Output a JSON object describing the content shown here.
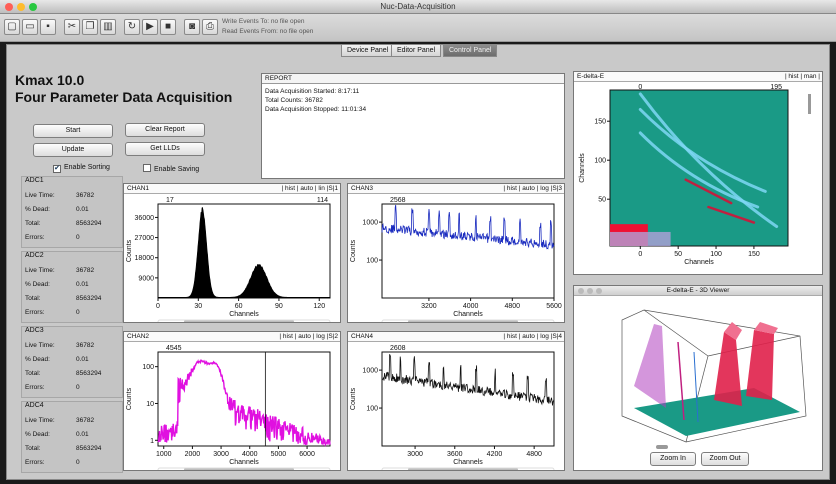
{
  "window": {
    "title": "Nuc-Data-Acquisition",
    "toolbar_info": [
      "Write Events To: no file open",
      "Read Events From: no file open"
    ]
  },
  "tabs": [
    {
      "label": "Device Panel"
    },
    {
      "label": "Editor Panel"
    },
    {
      "label": "Control Panel"
    }
  ],
  "app": {
    "title_line1": "Kmax 10.0",
    "title_line2": "Four Parameter Data Acquisition"
  },
  "buttons": {
    "start": "Start",
    "update": "Update",
    "clear_report": "Clear Report",
    "get_llds": "Get LLDs"
  },
  "checkboxes": {
    "enable_sorting": {
      "label": "Enable Sorting",
      "checked": true
    },
    "enable_saving": {
      "label": "Enable Saving",
      "checked": false
    }
  },
  "adc": [
    {
      "title": "ADC1",
      "live_time_label": "Live Time:",
      "live_time": "36782",
      "dead_label": "% Dead:",
      "dead": "0.01",
      "total_label": "Total:",
      "total": "8563294",
      "errors_label": "Errors:",
      "errors": "0"
    },
    {
      "title": "ADC2",
      "live_time_label": "Live Time:",
      "live_time": "36782",
      "dead_label": "% Dead:",
      "dead": "0.01",
      "total_label": "Total:",
      "total": "8563294",
      "errors_label": "Errors:",
      "errors": "0"
    },
    {
      "title": "ADC3",
      "live_time_label": "Live Time:",
      "live_time": "36782",
      "dead_label": "% Dead:",
      "dead": "0.01",
      "total_label": "Total:",
      "total": "8563294",
      "errors_label": "Errors:",
      "errors": "0"
    },
    {
      "title": "ADC4",
      "live_time_label": "Live Time:",
      "live_time": "36782",
      "dead_label": "% Dead:",
      "dead": "0.01",
      "total_label": "Total:",
      "total": "8563294",
      "errors_label": "Errors:",
      "errors": "0"
    }
  ],
  "report": {
    "header": "REPORT",
    "lines": [
      "Data Acquisition Started:  8:17:11",
      "Total Counts: 36782",
      "Data Acquisition Stopped: 11:01:34"
    ]
  },
  "chart_data": [
    {
      "name": "CHAN1",
      "type": "area",
      "controls": "| hist | auto | lin |S|1",
      "marker_labels": [
        "17",
        "114"
      ],
      "xlabel": "Channels",
      "ylabel": "Counts",
      "xlim": [
        0,
        128
      ],
      "ylim": [
        0,
        42000
      ],
      "yscale": "linear",
      "xticks": [
        0,
        30,
        60,
        90,
        120
      ],
      "yticks": [
        9000,
        18000,
        27000,
        36000
      ],
      "ytick_labels": [
        "9000",
        "18000",
        "27000",
        "36000"
      ],
      "color": "#000000",
      "peaks": [
        {
          "center": 33,
          "height": 39000,
          "width": 3.2
        },
        {
          "center": 75,
          "height": 14500,
          "width": 6
        }
      ],
      "baseline": 300
    },
    {
      "name": "CHAN3",
      "type": "line",
      "controls": "| hist | auto | log |S|3",
      "marker_labels": [
        "2568",
        ""
      ],
      "xlabel": "Channels",
      "ylabel": "Counts",
      "xlim": [
        2300,
        5600
      ],
      "ylim": [
        10,
        3000
      ],
      "yscale": "log",
      "xticks": [
        3200,
        4000,
        4800,
        5600
      ],
      "yticks": [
        100,
        1000
      ],
      "ytick_labels": [
        "100",
        "1000"
      ],
      "color": "#1a2bbf",
      "base": {
        "start": 700,
        "end": 250
      },
      "spikes": [
        2560,
        2880,
        3200,
        3400,
        3590,
        3780,
        4100,
        4380,
        4650,
        4950,
        5340,
        5540
      ]
    },
    {
      "name": "CHAN2",
      "type": "line",
      "controls": "| hist | auto | log |S|2",
      "marker_labels": [
        "4545"
      ],
      "xlabel": "Channels",
      "ylabel": "Counts",
      "xlim": [
        800,
        6800
      ],
      "ylim": [
        0.7,
        250
      ],
      "yscale": "log",
      "xticks": [
        1000,
        2000,
        3000,
        4000,
        5000,
        6000
      ],
      "yticks": [
        1,
        10,
        100
      ],
      "ytick_labels": [
        "1",
        "10",
        "100"
      ],
      "color": "#e010e0",
      "peaks": [
        {
          "center": 2300,
          "height": 120,
          "width": 260
        },
        {
          "center": 2800,
          "height": 90,
          "width": 180
        }
      ],
      "cursor": 4545
    },
    {
      "name": "CHAN4",
      "type": "line",
      "controls": "| hist | auto | log |S|4",
      "marker_labels": [
        "2608"
      ],
      "xlabel": "Channels",
      "ylabel": "Counts",
      "xlim": [
        2500,
        5100
      ],
      "ylim": [
        10,
        3000
      ],
      "yscale": "log",
      "xticks": [
        3000,
        3600,
        4200,
        4800
      ],
      "yticks": [
        100,
        1000
      ],
      "ytick_labels": [
        "100",
        "1000"
      ],
      "color": "#111111",
      "base": {
        "start": 700,
        "end": 150
      },
      "spikes": [
        2620,
        2780,
        2990,
        3210,
        3430,
        3690,
        3920,
        4210,
        4480,
        4700,
        4980
      ]
    },
    {
      "name": "E-delta-E",
      "type": "heatmap",
      "controls": "| hist | man |",
      "marker_labels": [
        "0",
        "195"
      ],
      "xlabel": "Channels",
      "ylabel": "Channels",
      "xlim": [
        -40,
        195
      ],
      "ylim": [
        -10,
        190
      ],
      "xticks": [
        0,
        50,
        100,
        150
      ],
      "yticks": [
        50,
        100,
        150
      ],
      "background_color": "#1a9a86",
      "loci": [
        {
          "from": [
            0,
            185
          ],
          "to": [
            180,
            15
          ],
          "color": "#7fd7f5"
        },
        {
          "from": [
            0,
            165
          ],
          "to": [
            165,
            60
          ],
          "color": "#7fd7f5"
        },
        {
          "from": [
            0,
            135
          ],
          "to": [
            155,
            40
          ],
          "color": "#7fd7f5"
        },
        {
          "from": [
            60,
            75
          ],
          "to": [
            120,
            45
          ],
          "color": "#c02040"
        },
        {
          "from": [
            90,
            40
          ],
          "to": [
            150,
            20
          ],
          "color": "#c02040"
        }
      ],
      "hotspot_color": "#ee1133"
    }
  ],
  "viewer3d": {
    "title": "E-delta-E - 3D Viewer",
    "zoom_in": "Zoom In",
    "zoom_out": "Zoom Out",
    "floor_color": "#1a9a86",
    "peak_color": "#e0204a"
  }
}
